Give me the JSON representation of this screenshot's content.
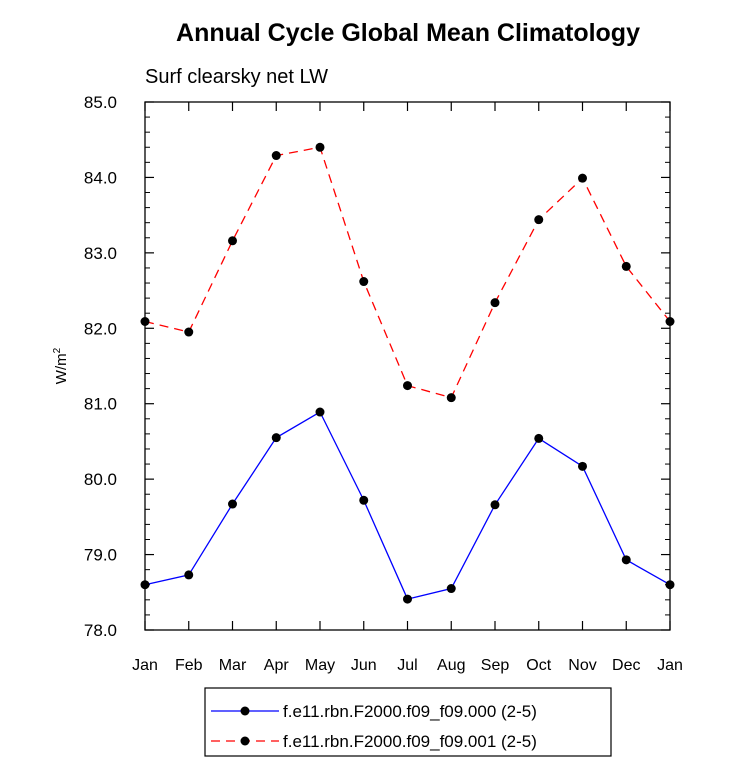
{
  "chart_data": {
    "type": "line",
    "title": "Annual Cycle Global Mean Climatology",
    "subtitle": "Surf clearsky net LW",
    "ylabel": "W/m",
    "ylabel_sup": "2",
    "xlabel": "",
    "categories": [
      "Jan",
      "Feb",
      "Mar",
      "Apr",
      "May",
      "Jun",
      "Jul",
      "Aug",
      "Sep",
      "Oct",
      "Nov",
      "Dec",
      "Jan"
    ],
    "ylim": [
      78.0,
      85.0
    ],
    "yticks": [
      "78.0",
      "79.0",
      "80.0",
      "81.0",
      "82.0",
      "83.0",
      "84.0",
      "85.0"
    ],
    "grid": false,
    "legend_position": "bottom",
    "series": [
      {
        "name": "f.e11.rbn.F2000.f09_f09.000 (2-5)",
        "color": "#0000ff",
        "dash": "solid",
        "values": [
          78.6,
          78.73,
          79.67,
          80.55,
          80.89,
          79.72,
          78.41,
          78.55,
          79.66,
          80.54,
          80.17,
          78.93,
          78.6
        ]
      },
      {
        "name": "f.e11.rbn.F2000.f09_f09.001 (2-5)",
        "color": "#ff0000",
        "dash": "dashed",
        "values": [
          82.09,
          81.95,
          83.16,
          84.29,
          84.4,
          82.62,
          81.24,
          81.08,
          82.34,
          83.44,
          83.99,
          82.82,
          82.09
        ]
      }
    ]
  }
}
